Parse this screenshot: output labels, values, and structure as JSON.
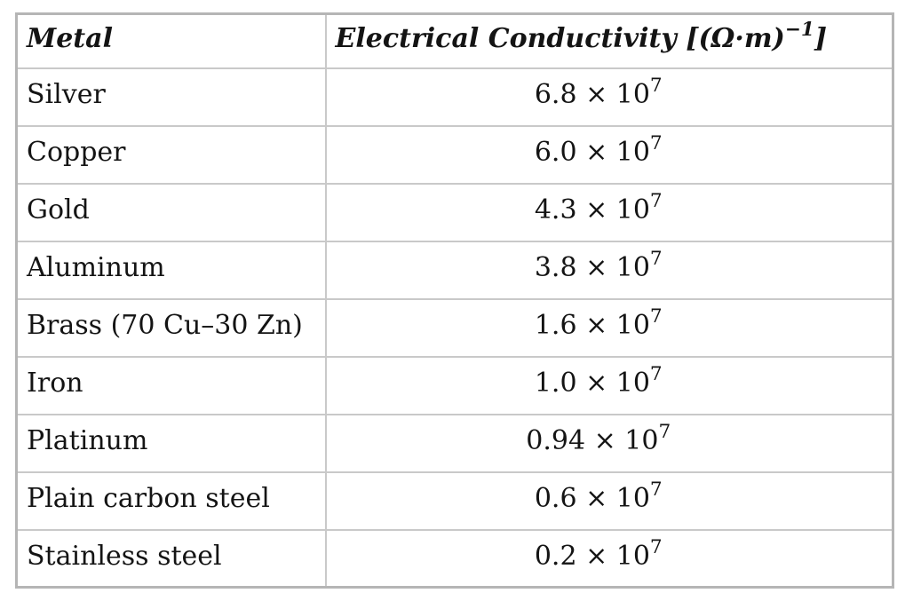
{
  "colors": {
    "background": "#ffffff",
    "border_inner": "#c9c9c9",
    "border_outer": "#b5b5b5",
    "text": "#141414"
  },
  "table": {
    "header": {
      "metal_label": "Metal",
      "conductivity_label_prefix": "Electrical Conductivity [(Ω·m)",
      "conductivity_exponent": "−1",
      "conductivity_label_suffix": "]"
    },
    "rows": [
      {
        "metal": "Silver",
        "value": "6.8 × 10",
        "exponent": "7"
      },
      {
        "metal": "Copper",
        "value": "6.0 × 10",
        "exponent": "7"
      },
      {
        "metal": "Gold",
        "value": "4.3 × 10",
        "exponent": "7"
      },
      {
        "metal": "Aluminum",
        "value": "3.8 × 10",
        "exponent": "7"
      },
      {
        "metal": "Brass (70 Cu–30 Zn)",
        "value": "1.6 × 10",
        "exponent": "7"
      },
      {
        "metal": "Iron",
        "value": "1.0 × 10",
        "exponent": "7"
      },
      {
        "metal": "Platinum",
        "value": "0.94 × 10",
        "exponent": "7"
      },
      {
        "metal": "Plain carbon steel",
        "value": "0.6 × 10",
        "exponent": "7"
      },
      {
        "metal": "Stainless steel",
        "value": "0.2 × 10",
        "exponent": "7"
      }
    ]
  },
  "chart_data": {
    "type": "table",
    "title": "",
    "columns": [
      "Metal",
      "Electrical Conductivity [(Ω·m)⁻¹]"
    ],
    "categories": [
      "Silver",
      "Copper",
      "Gold",
      "Aluminum",
      "Brass (70 Cu–30 Zn)",
      "Iron",
      "Platinum",
      "Plain carbon steel",
      "Stainless steel"
    ],
    "values": [
      68000000.0,
      60000000.0,
      43000000.0,
      38000000.0,
      16000000.0,
      10000000.0,
      9400000.0,
      6000000.0,
      2000000.0
    ],
    "value_display": [
      "6.8 × 10⁷",
      "6.0 × 10⁷",
      "4.3 × 10⁷",
      "3.8 × 10⁷",
      "1.6 × 10⁷",
      "1.0 × 10⁷",
      "0.94 × 10⁷",
      "0.6 × 10⁷",
      "0.2 × 10⁷"
    ],
    "unit": "(Ω·m)⁻¹"
  }
}
